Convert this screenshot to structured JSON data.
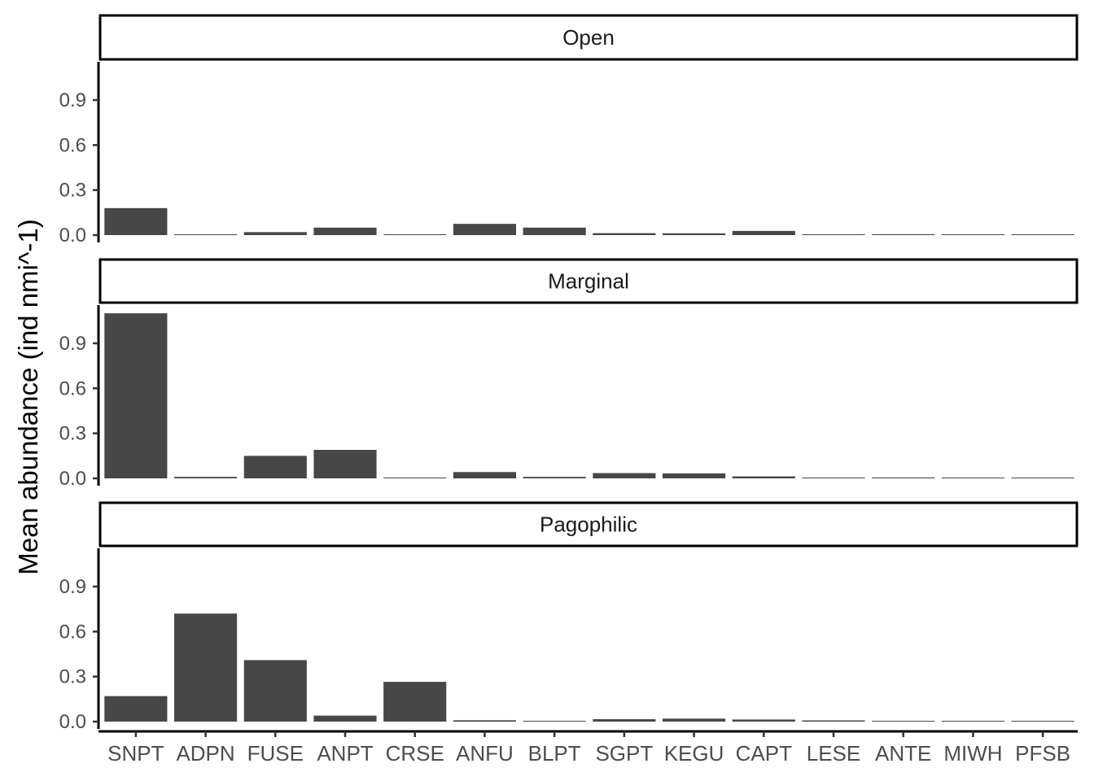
{
  "chart_data": {
    "type": "bar",
    "ylabel": "Mean abundance (ind nmi^-1)",
    "xlabel": "",
    "categories": [
      "SNPT",
      "ADPN",
      "FUSE",
      "ANPT",
      "CRSE",
      "ANFU",
      "BLPT",
      "SGPT",
      "KEGU",
      "CAPT",
      "LESE",
      "ANTE",
      "MIWH",
      "PFSB"
    ],
    "yticks": [
      0.0,
      0.3,
      0.6,
      0.9
    ],
    "ytick_labels": [
      "0.0",
      "0.3",
      "0.6",
      "0.9"
    ],
    "ylim": [
      0,
      1.15
    ],
    "bar_color": "#474747",
    "panels": [
      {
        "name": "Open",
        "values": [
          0.18,
          0.004,
          0.02,
          0.05,
          0.003,
          0.075,
          0.05,
          0.013,
          0.012,
          0.028,
          0.003,
          0.006,
          0.001,
          0.002
        ]
      },
      {
        "name": "Marginal",
        "values": [
          1.1,
          0.01,
          0.15,
          0.19,
          0.003,
          0.042,
          0.01,
          0.035,
          0.033,
          0.013,
          0.003,
          0.006,
          0.004,
          0.001
        ]
      },
      {
        "name": "Pagophilic",
        "values": [
          0.17,
          0.72,
          0.41,
          0.04,
          0.265,
          0.009,
          0.002,
          0.016,
          0.02,
          0.014,
          0.008,
          0.005,
          0.002,
          0.004
        ]
      }
    ]
  }
}
